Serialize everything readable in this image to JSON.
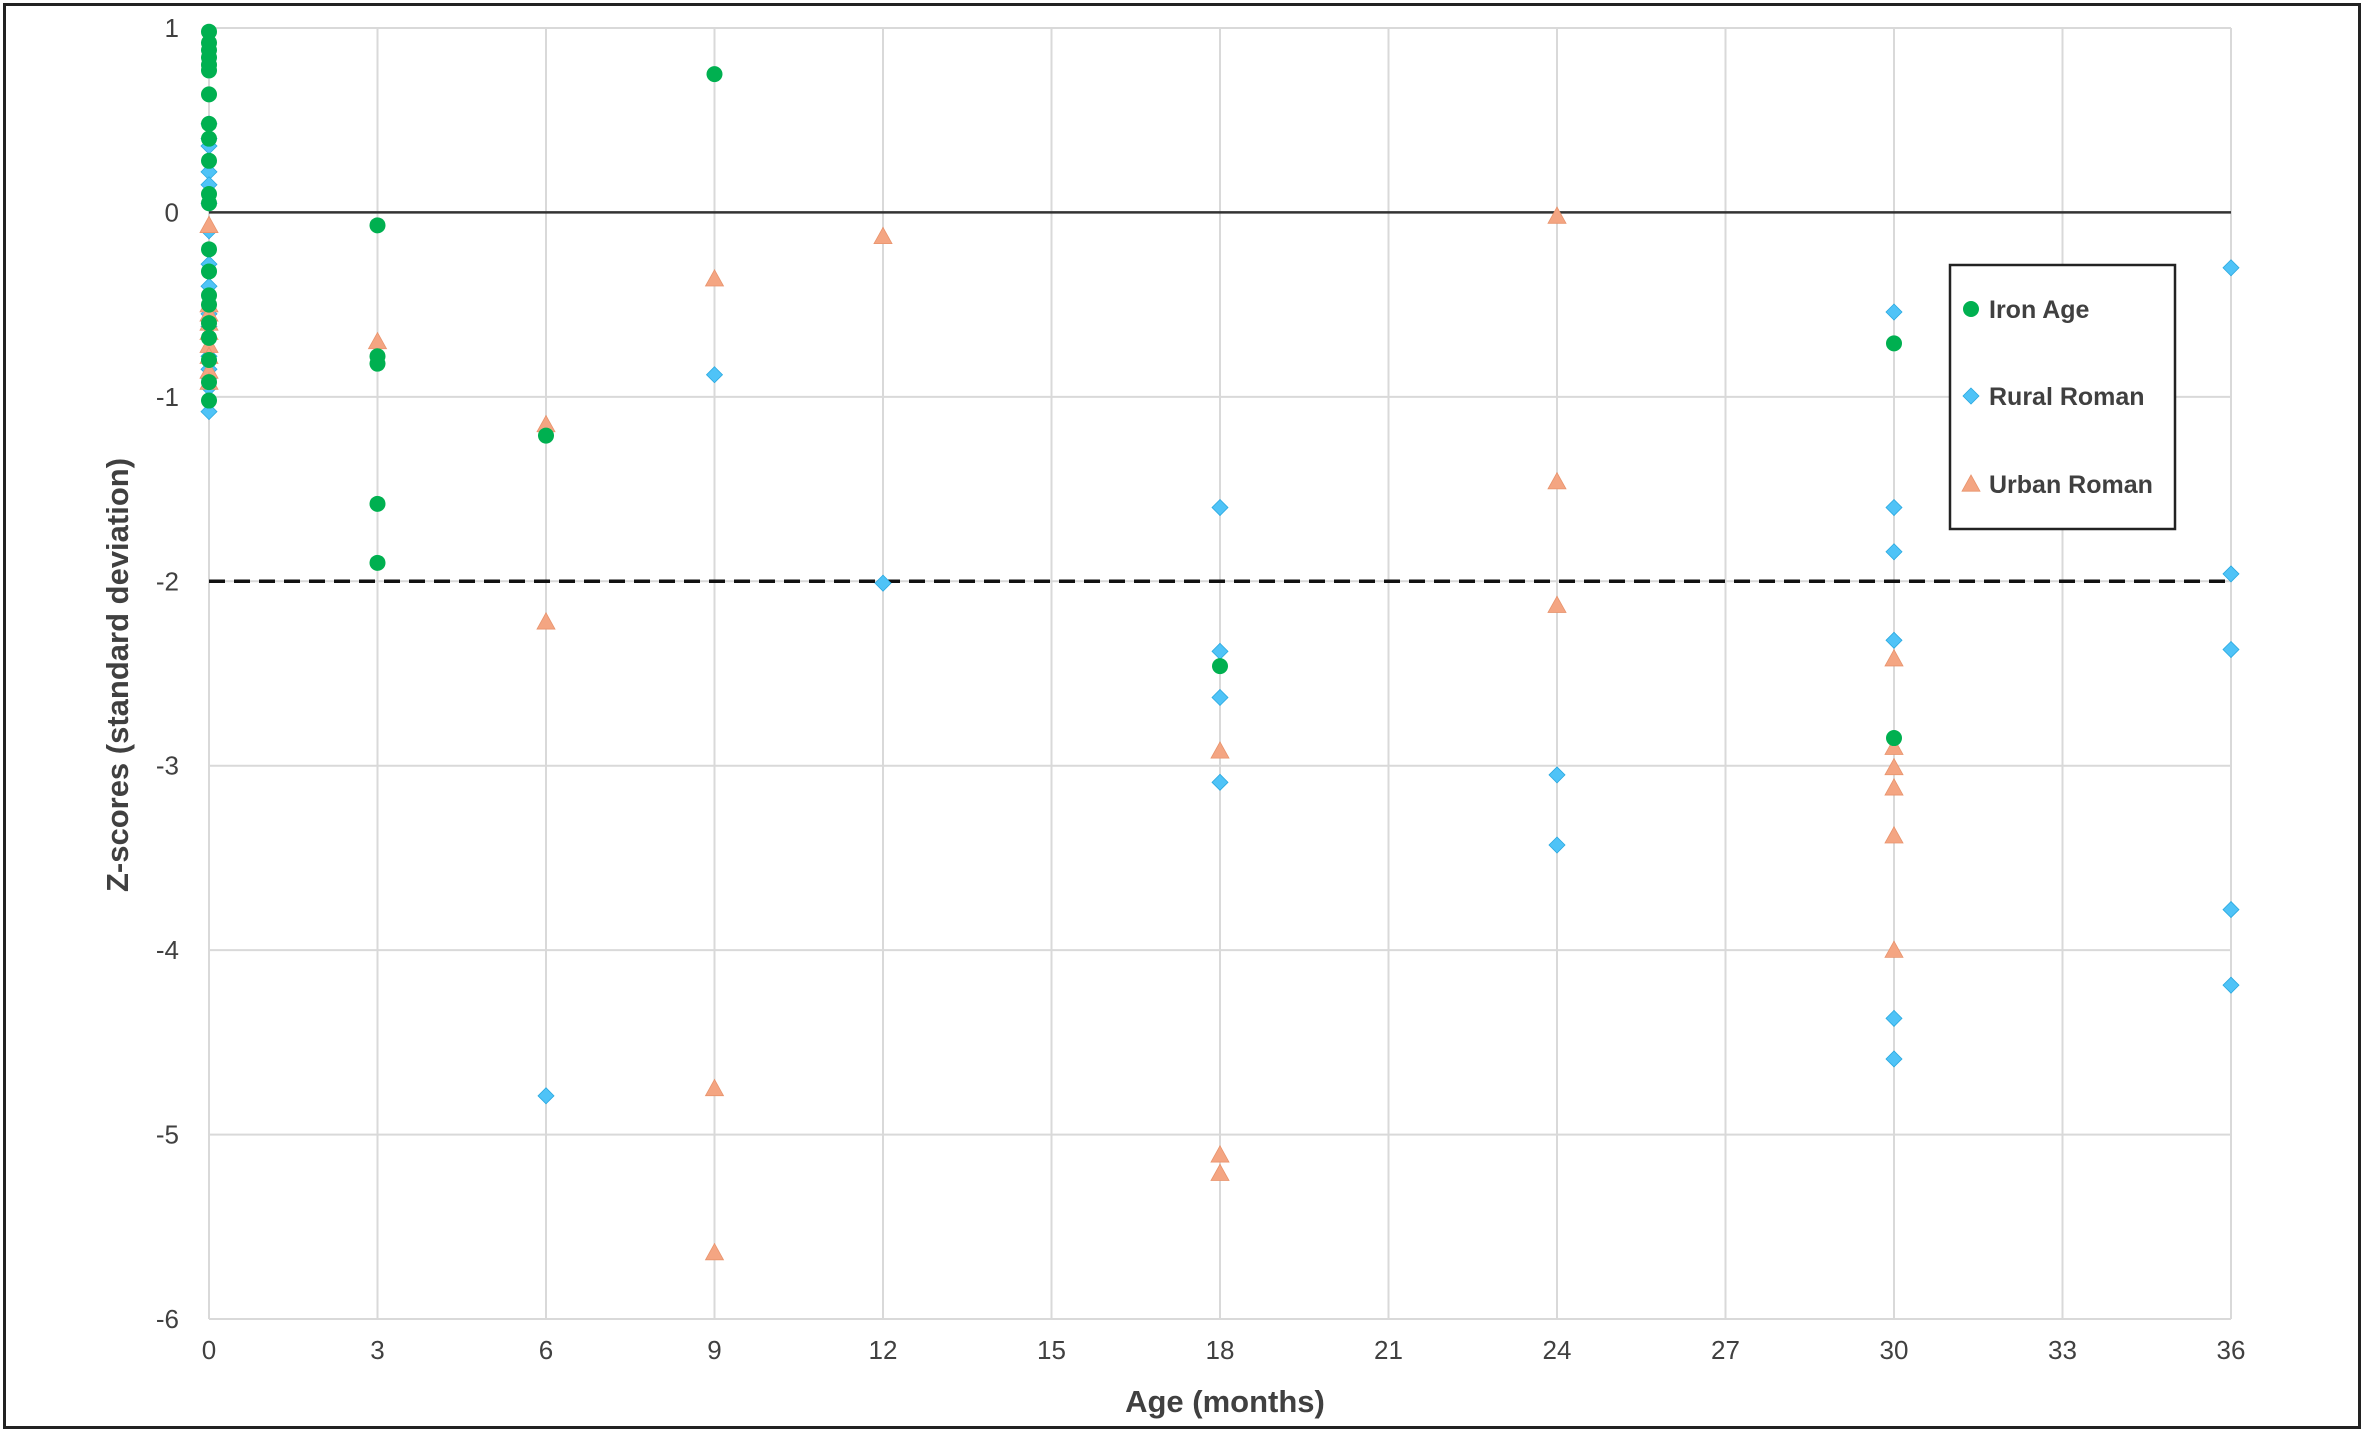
{
  "chart_data": {
    "type": "scatter",
    "xlabel": "Age (months)",
    "ylabel": "Z-scores (standard deviation)",
    "xlim": [
      0,
      36
    ],
    "ylim": [
      -6,
      1
    ],
    "xticks": [
      0,
      3,
      6,
      9,
      12,
      15,
      18,
      21,
      24,
      27,
      30,
      33,
      36
    ],
    "yticks": [
      1,
      0,
      -1,
      -2,
      -3,
      -4,
      -5,
      -6
    ],
    "grid": true,
    "legend_position": "right",
    "reference_lines": [
      {
        "y": 0,
        "style": "solid"
      },
      {
        "y": -2,
        "style": "dashed"
      }
    ],
    "series": [
      {
        "name": "Iron Age",
        "marker": "circle",
        "color": "#00B050",
        "points": [
          [
            0,
            0.98
          ],
          [
            0,
            0.92
          ],
          [
            0,
            0.88
          ],
          [
            0,
            0.84
          ],
          [
            0,
            0.8
          ],
          [
            0,
            0.77
          ],
          [
            0,
            0.64
          ],
          [
            0,
            0.48
          ],
          [
            0,
            0.4
          ],
          [
            0,
            0.28
          ],
          [
            0,
            0.1
          ],
          [
            0,
            0.05
          ],
          [
            0,
            -0.2
          ],
          [
            0,
            -0.32
          ],
          [
            0,
            -0.45
          ],
          [
            0,
            -0.5
          ],
          [
            0,
            -0.6
          ],
          [
            0,
            -0.68
          ],
          [
            0,
            -0.8
          ],
          [
            0,
            -0.92
          ],
          [
            0,
            -1.02
          ],
          [
            3,
            -0.07
          ],
          [
            3,
            -0.78
          ],
          [
            3,
            -0.82
          ],
          [
            3,
            -1.58
          ],
          [
            3,
            -1.9
          ],
          [
            6,
            -1.21
          ],
          [
            9,
            0.75
          ],
          [
            18,
            -2.46
          ],
          [
            30,
            -0.71
          ],
          [
            30,
            -2.85
          ]
        ]
      },
      {
        "name": "Rural Roman",
        "marker": "diamond",
        "color": "#4FC3F7",
        "points": [
          [
            0,
            0.48
          ],
          [
            0,
            0.4
          ],
          [
            0,
            0.36
          ],
          [
            0,
            0.22
          ],
          [
            0,
            0.15
          ],
          [
            0,
            0.05
          ],
          [
            0,
            -0.1
          ],
          [
            0,
            -0.28
          ],
          [
            0,
            -0.4
          ],
          [
            0,
            -0.55
          ],
          [
            0,
            -0.62
          ],
          [
            0,
            -0.78
          ],
          [
            0,
            -0.85
          ],
          [
            0,
            -0.9
          ],
          [
            0,
            -0.95
          ],
          [
            0,
            -1.08
          ],
          [
            6,
            -4.79
          ],
          [
            9,
            -0.88
          ],
          [
            12,
            -2.01
          ],
          [
            18,
            -1.6
          ],
          [
            18,
            -2.38
          ],
          [
            18,
            -2.63
          ],
          [
            18,
            -3.09
          ],
          [
            24,
            -3.05
          ],
          [
            24,
            -3.43
          ],
          [
            30,
            -0.54
          ],
          [
            30,
            -1.6
          ],
          [
            30,
            -1.84
          ],
          [
            30,
            -2.32
          ],
          [
            30,
            -4.37
          ],
          [
            30,
            -4.59
          ],
          [
            36,
            -0.3
          ],
          [
            36,
            -1.96
          ],
          [
            36,
            -2.37
          ],
          [
            36,
            -3.78
          ],
          [
            36,
            -4.19
          ]
        ]
      },
      {
        "name": "Urban Roman",
        "marker": "triangle",
        "color": "#F4A582",
        "points": [
          [
            0,
            -0.07
          ],
          [
            0,
            -0.5
          ],
          [
            0,
            -0.55
          ],
          [
            0,
            -0.6
          ],
          [
            0,
            -0.65
          ],
          [
            0,
            -0.72
          ],
          [
            0,
            -0.78
          ],
          [
            0,
            -0.86
          ],
          [
            0,
            -0.92
          ],
          [
            3,
            -0.7
          ],
          [
            6,
            -1.15
          ],
          [
            6,
            -2.22
          ],
          [
            9,
            -0.36
          ],
          [
            9,
            -4.75
          ],
          [
            9,
            -5.64
          ],
          [
            12,
            -0.13
          ],
          [
            18,
            -2.92
          ],
          [
            18,
            -5.11
          ],
          [
            18,
            -5.21
          ],
          [
            24,
            -0.02
          ],
          [
            24,
            -1.46
          ],
          [
            24,
            -2.13
          ],
          [
            30,
            -2.42
          ],
          [
            30,
            -2.9
          ],
          [
            30,
            -3.01
          ],
          [
            30,
            -3.12
          ],
          [
            30,
            -3.38
          ],
          [
            30,
            -4.0
          ]
        ]
      }
    ]
  }
}
